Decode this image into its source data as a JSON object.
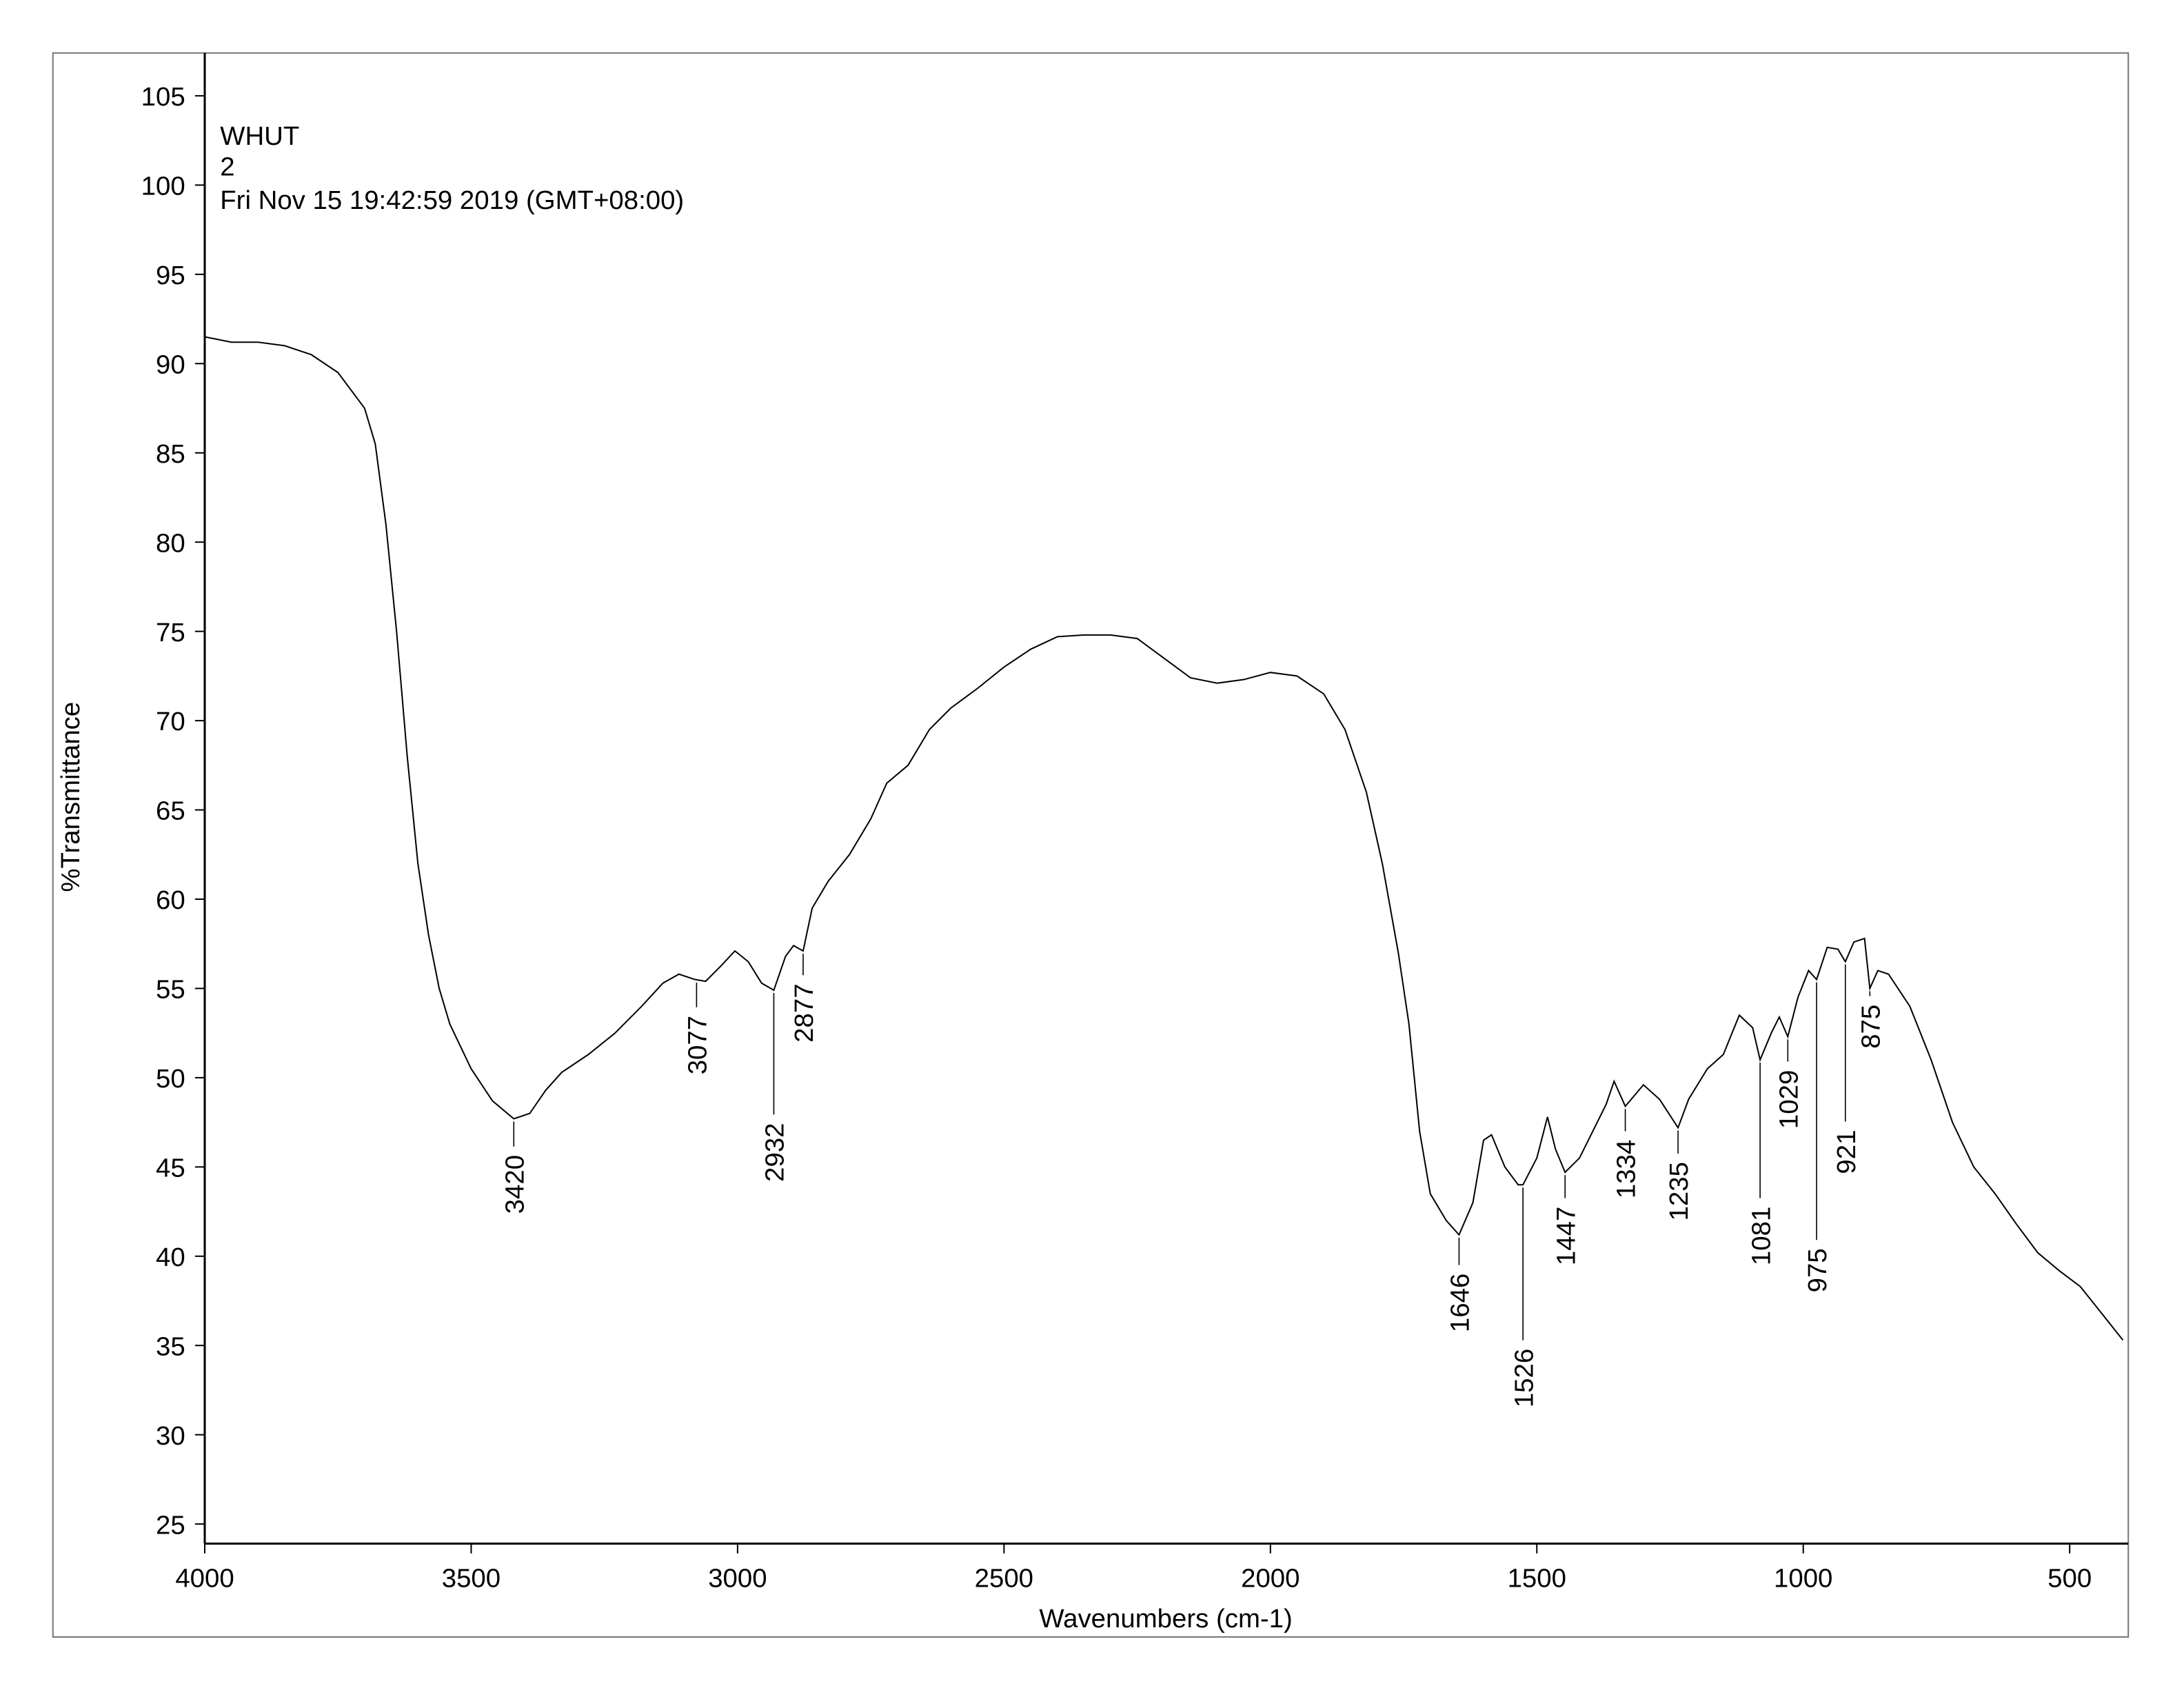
{
  "chart_data": {
    "type": "line",
    "header": [
      "WHUT",
      "2",
      "Fri Nov 15 19:42:59 2019 (GMT+08:00)"
    ],
    "x_label": "Wavenumbers (cm-1)",
    "y_label": "%Transmittance",
    "xlim": [
      4000,
      390
    ],
    "ylim": [
      23.9,
      107.4
    ],
    "xticks": [
      4000,
      3500,
      3000,
      2500,
      2000,
      1500,
      1000,
      500
    ],
    "yticks": [
      25,
      30,
      35,
      40,
      45,
      50,
      55,
      60,
      65,
      70,
      75,
      80,
      85,
      90,
      95,
      100,
      105
    ],
    "color": "#000000",
    "x": [
      4000,
      3950,
      3900,
      3850,
      3800,
      3750,
      3700,
      3680,
      3660,
      3640,
      3620,
      3600,
      3580,
      3560,
      3540,
      3500,
      3460,
      3420,
      3390,
      3360,
      3330,
      3280,
      3230,
      3180,
      3140,
      3110,
      3080,
      3060,
      3030,
      3005,
      2980,
      2955,
      2932,
      2910,
      2895,
      2877,
      2860,
      2830,
      2790,
      2750,
      2720,
      2680,
      2640,
      2600,
      2550,
      2500,
      2450,
      2400,
      2350,
      2300,
      2250,
      2200,
      2150,
      2100,
      2050,
      2000,
      1950,
      1900,
      1860,
      1820,
      1790,
      1760,
      1740,
      1720,
      1700,
      1670,
      1646,
      1620,
      1600,
      1585,
      1560,
      1535,
      1526,
      1500,
      1480,
      1465,
      1447,
      1420,
      1395,
      1370,
      1355,
      1334,
      1300,
      1270,
      1235,
      1215,
      1180,
      1150,
      1120,
      1095,
      1081,
      1060,
      1045,
      1029,
      1010,
      990,
      975,
      955,
      935,
      921,
      905,
      885,
      875,
      860,
      840,
      800,
      760,
      720,
      680,
      640,
      600,
      560,
      520,
      480,
      440,
      400
    ],
    "values": [
      91.5,
      91.2,
      91.2,
      91.0,
      90.5,
      89.5,
      87.5,
      85.5,
      81,
      75,
      68,
      62,
      58,
      55,
      53,
      50.5,
      48.7,
      47.7,
      48.0,
      49.3,
      50.3,
      51.3,
      52.5,
      54,
      55.3,
      55.8,
      55.5,
      55.4,
      56.3,
      57.1,
      56.5,
      55.3,
      54.9,
      56.8,
      57.4,
      57.1,
      59.5,
      61,
      62.5,
      64.5,
      66.5,
      67.5,
      69.5,
      70.7,
      71.8,
      73,
      74,
      74.7,
      74.8,
      74.8,
      74.6,
      73.5,
      72.4,
      72.1,
      72.3,
      72.7,
      72.5,
      71.5,
      69.5,
      66,
      62,
      57,
      53,
      47,
      43.5,
      42,
      41.2,
      43,
      46.5,
      46.8,
      45,
      44,
      44,
      45.5,
      47.8,
      46,
      44.7,
      45.5,
      47,
      48.5,
      49.8,
      48.4,
      49.6,
      48.8,
      47.2,
      48.8,
      50.5,
      51.3,
      53.5,
      52.8,
      51,
      52.5,
      53.4,
      52.3,
      54.5,
      56,
      55.5,
      57.3,
      57.2,
      56.5,
      57.6,
      57.8,
      55,
      56,
      55.8,
      54,
      51,
      47.5,
      45,
      43.5,
      41.8,
      40.2,
      39.2,
      38.3,
      36.8,
      35.3
    ],
    "peaks": [
      3420,
      3077,
      2932,
      2877,
      1646,
      1526,
      1447,
      1334,
      1235,
      1081,
      1029,
      975,
      921,
      875
    ]
  }
}
